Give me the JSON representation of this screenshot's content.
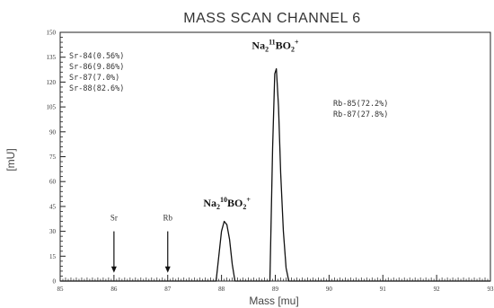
{
  "chart_data": {
    "type": "line",
    "title": "MASS SCAN CHANNEL 6",
    "xlabel": "Mass [mu]",
    "ylabel": "[mU]",
    "xlim": [
      85,
      93
    ],
    "ylim": [
      0,
      150
    ],
    "x_ticks": [
      85,
      86,
      87,
      88,
      89,
      90,
      91,
      92,
      93
    ],
    "x_tick_labels": [
      "85",
      "86",
      "87",
      "88",
      "89",
      "90",
      "91",
      "92",
      "93"
    ],
    "y_ticks": [
      0,
      15,
      30,
      45,
      60,
      75,
      90,
      105,
      120,
      135,
      150
    ],
    "y_tick_labels": [
      "0",
      "15",
      "30",
      "45",
      "60",
      "75",
      "90",
      "105",
      "120",
      "135",
      "150"
    ],
    "grid": false,
    "series": [
      {
        "x": [
          85,
          87.9,
          87.95,
          88.0,
          88.05,
          88.1,
          88.15,
          88.2,
          88.25,
          88.3,
          88.9,
          88.95,
          88.99,
          89.02,
          89.06,
          89.1,
          89.15,
          89.2,
          89.25,
          93
        ],
        "y": [
          0,
          0,
          15,
          30,
          36,
          34,
          25,
          10,
          0,
          0,
          0,
          80,
          125,
          128,
          105,
          65,
          30,
          8,
          0,
          0
        ]
      }
    ],
    "annotations": {
      "sr_isotopes": [
        "Sr-84(0.56%)",
        "Sr-86(9.86%)",
        "Sr-87(7.0%)",
        "Sr-88(82.6%)"
      ],
      "rb_isotopes": [
        "Rb-85(72.2%)",
        "Rb-87(27.8%)"
      ],
      "peaks": [
        {
          "text": "Na2 10BO2+",
          "base": "Na",
          "sub1": "2",
          "sup": "10",
          "mid": "BO",
          "sub2": "2",
          "charge": "+",
          "x": 88.1,
          "y": 45
        },
        {
          "text": "Na2 11BO2+",
          "base": "Na",
          "sub1": "2",
          "sup": "11",
          "mid": "BO",
          "sub2": "2",
          "charge": "+",
          "x": 89.0,
          "y": 140
        }
      ],
      "markers": [
        {
          "label": "Sr",
          "x": 86,
          "y_top": 30,
          "y_bottom": 5
        },
        {
          "label": "Rb",
          "x": 87,
          "y_top": 30,
          "y_bottom": 5
        }
      ]
    }
  }
}
